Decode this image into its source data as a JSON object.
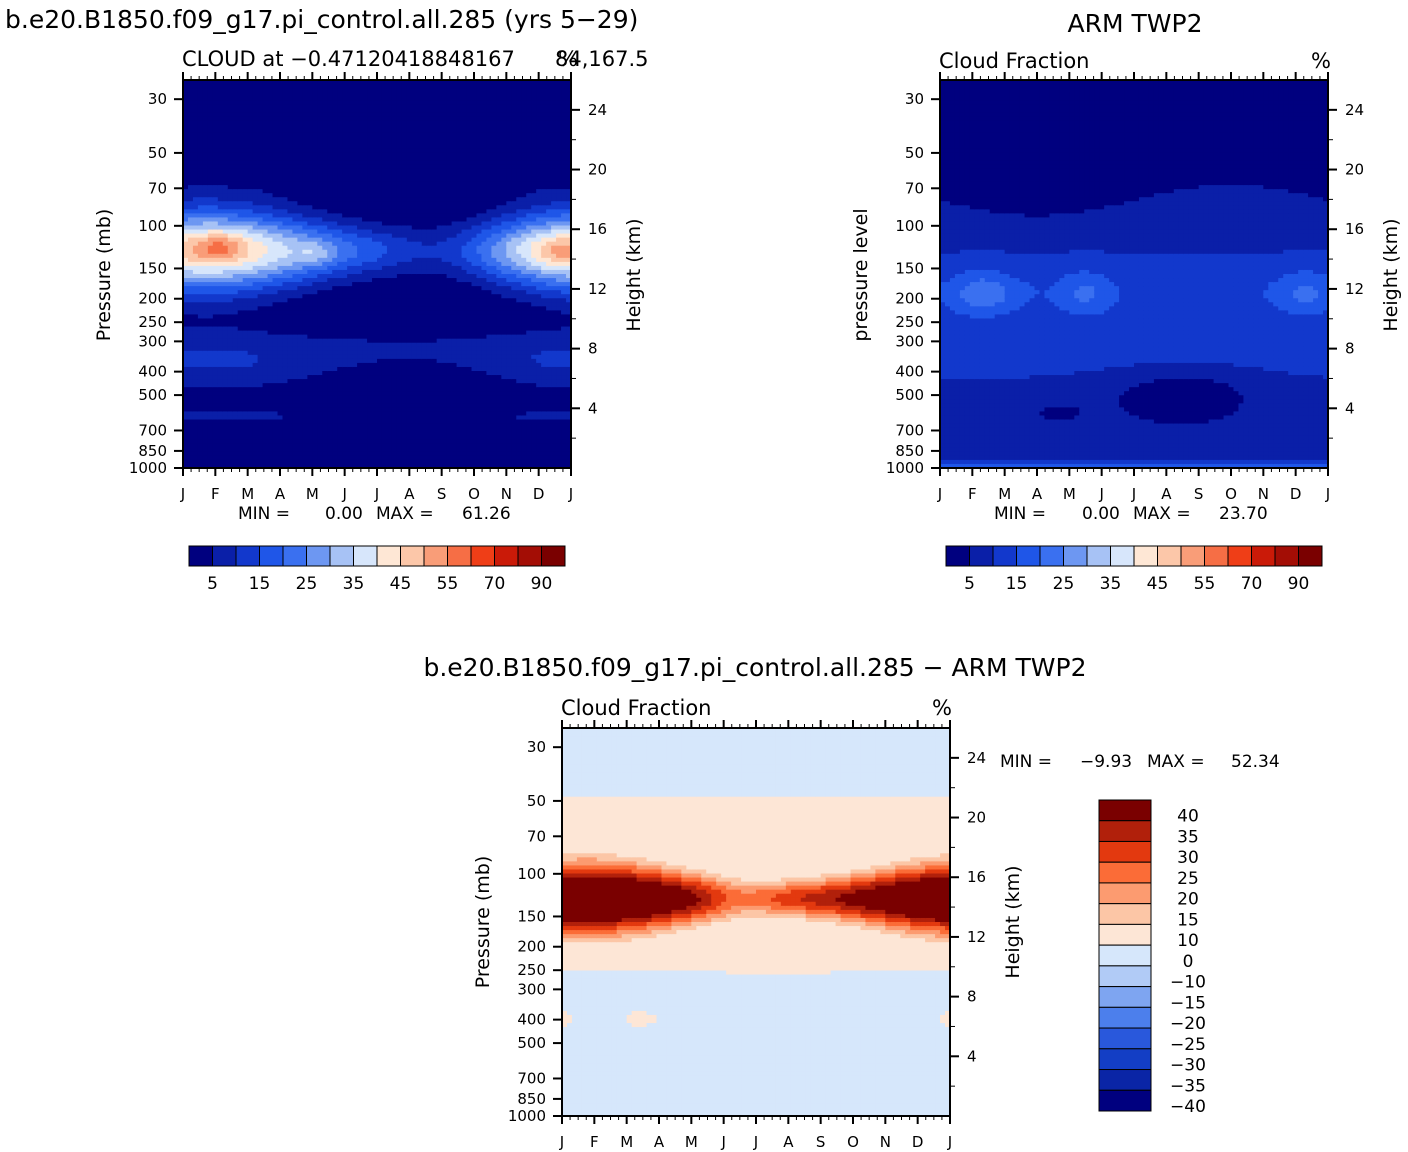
{
  "top_left_title": "b.e20.B1850.f09_g17.pi_control.all.285 (yrs 5−29)",
  "top_right_title": "ARM TWP2",
  "bottom_title": "b.e20.B1850.f09_g17.pi_control.all.285 − ARM TWP2",
  "chart_data": [
    {
      "type": "heatmap",
      "name": "model",
      "subtitle_left": "CLOUD at −0.47120418848167",
      "subtitle_right": "84,167.5",
      "units": "%",
      "ylabel": "Pressure (mb)",
      "ylabel_right": "Height (km)",
      "x_ticks": [
        "J",
        "F",
        "M",
        "A",
        "M",
        "J",
        "J",
        "A",
        "S",
        "O",
        "N",
        "D",
        "J"
      ],
      "pressure_ticks": [
        "30",
        "50",
        "70",
        "100",
        "150",
        "200",
        "250",
        "300",
        "400",
        "500",
        "700",
        "850",
        "1000"
      ],
      "height_ticks": [
        "24",
        "20",
        "16",
        "12",
        "8",
        "4"
      ],
      "min_label": "MIN =",
      "min_value": "0.00",
      "max_label": "MAX =",
      "max_value": "61.26",
      "colorbar_labels": [
        "5",
        "15",
        "25",
        "35",
        "45",
        "55",
        "70",
        "90"
      ]
    },
    {
      "type": "heatmap",
      "name": "obs",
      "subtitle_left": "Cloud Fraction",
      "units": "%",
      "ylabel": "pressure level",
      "ylabel_right": "Height (km)",
      "x_ticks": [
        "J",
        "F",
        "M",
        "A",
        "M",
        "J",
        "J",
        "A",
        "S",
        "O",
        "N",
        "D",
        "J"
      ],
      "pressure_ticks": [
        "30",
        "50",
        "70",
        "100",
        "150",
        "200",
        "250",
        "300",
        "400",
        "500",
        "700",
        "850",
        "1000"
      ],
      "height_ticks": [
        "24",
        "20",
        "16",
        "12",
        "8",
        "4"
      ],
      "min_label": "MIN =",
      "min_value": "0.00",
      "max_label": "MAX =",
      "max_value": "23.70",
      "colorbar_labels": [
        "5",
        "15",
        "25",
        "35",
        "45",
        "55",
        "70",
        "90"
      ]
    },
    {
      "type": "heatmap",
      "name": "difference",
      "subtitle_left": "Cloud Fraction",
      "units": "%",
      "ylabel": "Pressure (mb)",
      "ylabel_right": "Height (km)",
      "x_ticks": [
        "J",
        "F",
        "M",
        "A",
        "M",
        "J",
        "J",
        "A",
        "S",
        "O",
        "N",
        "D",
        "J"
      ],
      "pressure_ticks": [
        "30",
        "50",
        "70",
        "100",
        "150",
        "200",
        "250",
        "300",
        "400",
        "500",
        "700",
        "850",
        "1000"
      ],
      "height_ticks": [
        "24",
        "20",
        "16",
        "12",
        "8",
        "4"
      ],
      "min_label": "MIN =",
      "min_value": "−9.93",
      "max_label": "MAX =",
      "max_value": "52.34",
      "colorbar_labels": [
        "40",
        "35",
        "30",
        "25",
        "20",
        "15",
        "10",
        "0",
        "−10",
        "−15",
        "−20",
        "−25",
        "−30",
        "−35",
        "−40"
      ]
    }
  ],
  "colors": {
    "seq": [
      "#00007f",
      "#0a1fa8",
      "#1238cc",
      "#1f56e8",
      "#3a70f0",
      "#6d97f2",
      "#a7c2f5",
      "#d7e6fb",
      "#fee7d5",
      "#fcc7a9",
      "#f99d78",
      "#f66e45",
      "#ef3e17",
      "#ca1a08",
      "#a30d05",
      "#7a0000"
    ],
    "diff": [
      "#7a0000",
      "#b1200b",
      "#e3390f",
      "#fb6c37",
      "#fc9b70",
      "#fcc6a6",
      "#fde6d6",
      "#d6e7fb",
      "#b1cbf6",
      "#7ea5f1",
      "#4c7fec",
      "#2958dc",
      "#133ec5",
      "#0a25a6",
      "#00007f"
    ]
  }
}
